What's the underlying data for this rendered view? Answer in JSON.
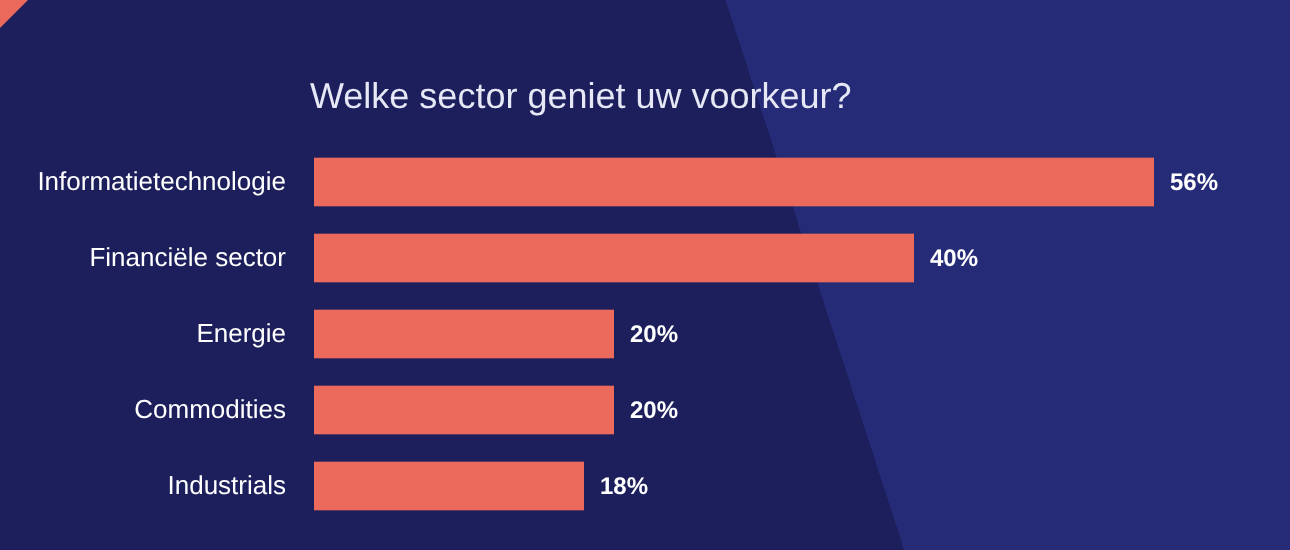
{
  "chart_data": {
    "type": "bar",
    "orientation": "horizontal",
    "title": "Welke sector geniet uw voorkeur?",
    "categories": [
      "Informatietechnologie",
      "Financiële sector",
      "Energie",
      "Commodities",
      "Industrials"
    ],
    "values": [
      56,
      40,
      20,
      20,
      18
    ],
    "value_labels": [
      "56%",
      "40%",
      "20%",
      "20%",
      "18%"
    ],
    "color": "#ec6a5c"
  }
}
